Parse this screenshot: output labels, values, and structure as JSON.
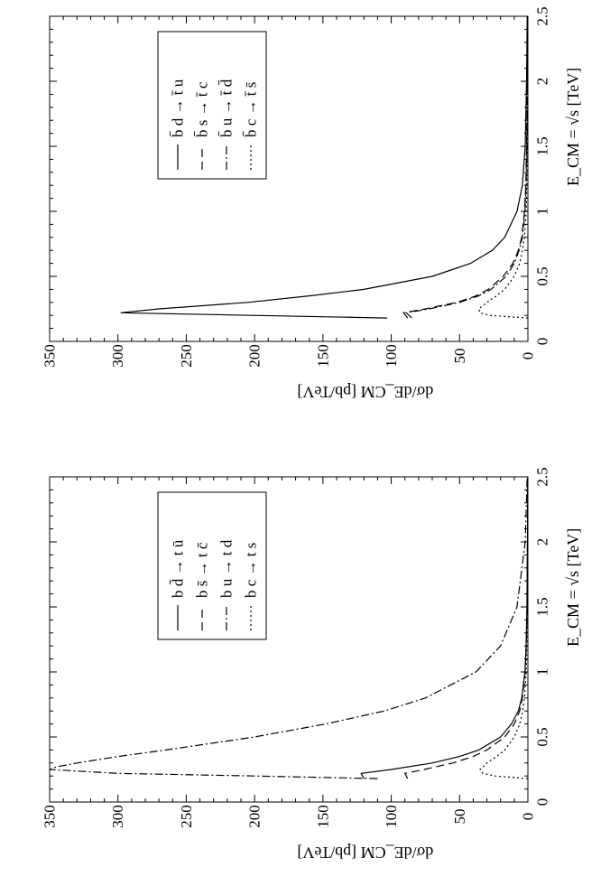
{
  "chart_data": [
    {
      "type": "line",
      "panel": "top",
      "xlabel": "E_CM = √s  [TeV]",
      "ylabel": "dσ/dE_CM   [pb/TeV]",
      "xlim": [
        0,
        2.5
      ],
      "ylim": [
        0,
        350
      ],
      "x_ticks": [
        "0",
        "0.5",
        "1",
        "1.5",
        "2",
        "2.5"
      ],
      "y_ticks": [
        "0",
        "50",
        "100",
        "150",
        "200",
        "250",
        "300",
        "350"
      ],
      "legend_position": "top-right",
      "series": [
        {
          "name": "b̄ d → t̄ u",
          "style": "solid",
          "x": [
            0.18,
            0.22,
            0.25,
            0.3,
            0.35,
            0.4,
            0.5,
            0.6,
            0.7,
            0.8,
            1.0,
            1.2,
            1.5,
            2.0,
            2.5
          ],
          "y": [
            103,
            298,
            270,
            205,
            160,
            120,
            70,
            42,
            26,
            17,
            8,
            4,
            2,
            1,
            0.5
          ]
        },
        {
          "name": "b̄ s → t̄ c",
          "style": "dashed",
          "x": [
            0.18,
            0.22,
            0.25,
            0.3,
            0.35,
            0.4,
            0.5,
            0.6,
            0.7,
            0.8,
            1.0,
            1.2,
            1.5,
            2.0,
            2.5
          ],
          "y": [
            88,
            91,
            75,
            52,
            38,
            29,
            18,
            11,
            7,
            4.5,
            2.5,
            1.5,
            1,
            0.5,
            0.3
          ]
        },
        {
          "name": "b̄ u → t̄ d̄",
          "style": "dashdot",
          "x": [
            0.18,
            0.22,
            0.25,
            0.3,
            0.35,
            0.4,
            0.5,
            0.6,
            0.7,
            0.8,
            1.0,
            1.2,
            1.5,
            2.0,
            2.5
          ],
          "y": [
            85,
            89,
            72,
            50,
            36,
            27,
            16,
            10,
            6.5,
            4,
            2.2,
            1.3,
            0.8,
            0.4,
            0.2
          ]
        },
        {
          "name": "b̄ c → t̄ s̄",
          "style": "dotted",
          "x": [
            0.18,
            0.2,
            0.22,
            0.25,
            0.3,
            0.35,
            0.4,
            0.5,
            0.6,
            0.7,
            0.8,
            1.0,
            1.5,
            2.0,
            2.5
          ],
          "y": [
            0,
            28,
            35,
            36,
            30,
            23,
            17,
            10,
            6,
            4,
            2.5,
            1.2,
            0.5,
            0.2,
            0.1
          ]
        }
      ]
    },
    {
      "type": "line",
      "panel": "bottom",
      "xlabel": "E_CM = √s  [TeV]",
      "ylabel": "dσ/dE_CM   [pb/TeV]",
      "xlim": [
        0,
        2.5
      ],
      "ylim": [
        0,
        350
      ],
      "x_ticks": [
        "0",
        "0.5",
        "1",
        "1.5",
        "2",
        "2.5"
      ],
      "y_ticks": [
        "0",
        "50",
        "100",
        "150",
        "200",
        "250",
        "300",
        "350"
      ],
      "legend_position": "top-right",
      "series": [
        {
          "name": "b d̄ → t ū",
          "style": "solid",
          "x": [
            0.18,
            0.22,
            0.25,
            0.3,
            0.35,
            0.4,
            0.5,
            0.6,
            0.7,
            0.8,
            1.0,
            1.2,
            1.5,
            2.0,
            2.5
          ],
          "y": [
            120,
            122,
            100,
            70,
            50,
            36,
            20,
            12,
            7,
            4.5,
            2.2,
            1.3,
            0.7,
            0.3,
            0.1
          ]
        },
        {
          "name": "b s̄ → t c̄",
          "style": "dashed",
          "x": [
            0.18,
            0.22,
            0.25,
            0.3,
            0.35,
            0.4,
            0.5,
            0.6,
            0.7,
            0.8,
            1.0,
            1.2,
            1.5,
            2.0,
            2.5
          ],
          "y": [
            88,
            90,
            76,
            55,
            40,
            30,
            17,
            10,
            6,
            4,
            2,
            1.2,
            0.6,
            0.3,
            0.1
          ]
        },
        {
          "name": "b u → t d",
          "style": "dashdot",
          "x": [
            0.18,
            0.2,
            0.22,
            0.25,
            0.27,
            0.3,
            0.35,
            0.4,
            0.5,
            0.6,
            0.7,
            0.8,
            1.0,
            1.2,
            1.5,
            2.0,
            2.5
          ],
          "y": [
            110,
            200,
            300,
            350,
            345,
            330,
            300,
            265,
            200,
            148,
            105,
            75,
            38,
            20,
            8,
            2,
            0.5
          ]
        },
        {
          "name": "b c → t s",
          "style": "dotted",
          "x": [
            0.18,
            0.2,
            0.22,
            0.25,
            0.3,
            0.35,
            0.4,
            0.5,
            0.6,
            0.7,
            0.8,
            1.0,
            1.5,
            2.0,
            2.5
          ],
          "y": [
            0,
            24,
            33,
            35,
            30,
            23,
            17,
            10,
            6,
            3.8,
            2.5,
            1.2,
            0.4,
            0.2,
            0.1
          ]
        }
      ]
    }
  ]
}
